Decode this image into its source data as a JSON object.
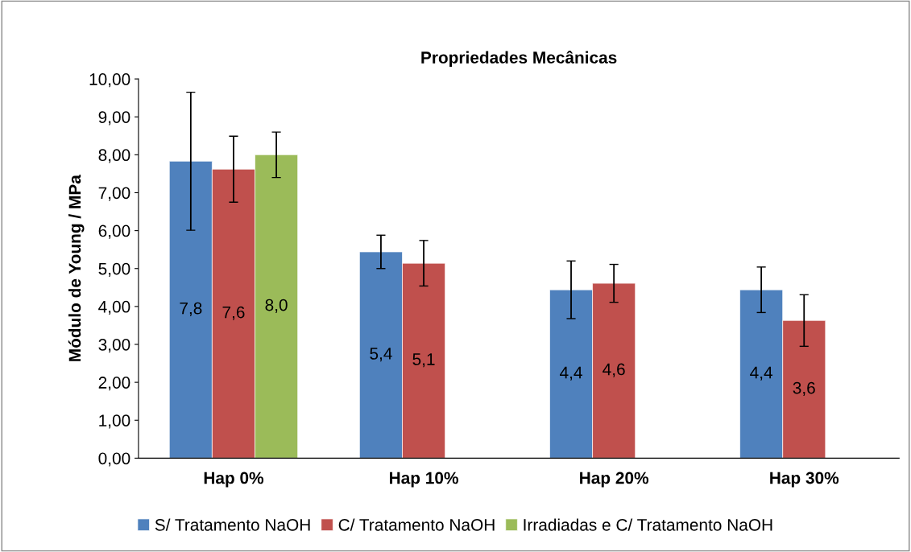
{
  "chart_data": {
    "type": "bar",
    "title": "Propriedades Mecânicas",
    "ylabel": "Módulo de Young / MPa",
    "categories": [
      "Hap 0%",
      "Hap 10%",
      "Hap 20%",
      "Hap 30%"
    ],
    "series": [
      {
        "name": "S/ Tratamento NaOH",
        "color": "#4f81bd",
        "values": [
          7.83,
          5.44,
          4.44,
          4.44
        ],
        "errors": [
          1.82,
          0.44,
          0.76,
          0.6
        ],
        "value_labels": [
          "7,8",
          "5,4",
          "4,4",
          "4,4"
        ]
      },
      {
        "name": "C/ Tratamento NaOH",
        "color": "#c0504d",
        "values": [
          7.62,
          5.14,
          4.61,
          3.63
        ],
        "errors": [
          0.87,
          0.6,
          0.5,
          0.68
        ],
        "value_labels": [
          "7,6",
          "5,1",
          "4,6",
          "3,6"
        ]
      },
      {
        "name": "Irradiadas e C/ Tratamento NaOH",
        "color": "#9bbb59",
        "values": [
          8.0,
          null,
          null,
          null
        ],
        "errors": [
          0.6,
          null,
          null,
          null
        ],
        "value_labels": [
          "8,0",
          null,
          null,
          null
        ]
      }
    ],
    "ylim": [
      0,
      10
    ],
    "yticks": [
      {
        "value": 0,
        "label": "0,00"
      },
      {
        "value": 1,
        "label": "1,00"
      },
      {
        "value": 2,
        "label": "2,00"
      },
      {
        "value": 3,
        "label": "3,00"
      },
      {
        "value": 4,
        "label": "4,00"
      },
      {
        "value": 5,
        "label": "5,00"
      },
      {
        "value": 6,
        "label": "6,00"
      },
      {
        "value": 7,
        "label": "7,00"
      },
      {
        "value": 8,
        "label": "8,00"
      },
      {
        "value": 9,
        "label": "9,00"
      },
      {
        "value": 10,
        "label": "10,00"
      }
    ],
    "grid": false,
    "legend": "bottom"
  }
}
